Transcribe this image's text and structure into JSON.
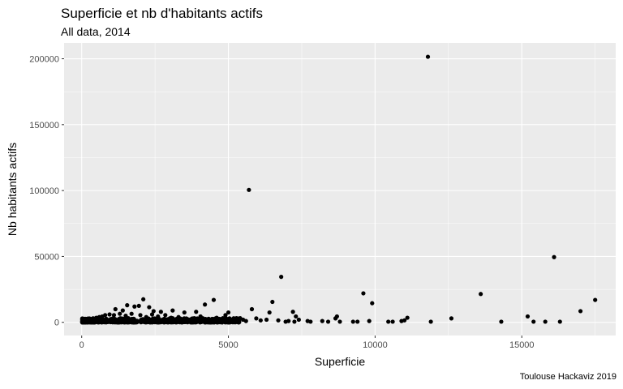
{
  "chart_data": {
    "type": "scatter",
    "title": "Superficie et nb d'habitants actifs",
    "subtitle": "All data, 2014",
    "caption": "Toulouse Hackaviz 2019",
    "xlabel": "Superficie",
    "ylabel": "Nb habitants actifs",
    "xlim": [
      -600,
      18200
    ],
    "ylim": [
      -10000,
      212000
    ],
    "xticks": [
      0,
      5000,
      10000,
      15000
    ],
    "xtick_labels": [
      "0",
      "5000",
      "10000",
      "15000"
    ],
    "yticks": [
      0,
      50000,
      100000,
      150000,
      200000
    ],
    "ytick_labels": [
      "0",
      "50000",
      "100000",
      "150000",
      "200000"
    ],
    "grid": true,
    "legend": "none",
    "colors": {
      "panel": "#ebebeb",
      "grid": "#ffffff",
      "point": "#000000"
    },
    "points": [
      [
        11800,
        201500
      ],
      [
        5700,
        100500
      ],
      [
        16100,
        49500
      ],
      [
        6800,
        34500
      ],
      [
        9600,
        22000
      ],
      [
        13600,
        21500
      ],
      [
        17500,
        17000
      ],
      [
        2100,
        17500
      ],
      [
        4500,
        17000
      ],
      [
        6500,
        15500
      ],
      [
        9900,
        14500
      ],
      [
        4200,
        13500
      ],
      [
        1550,
        13000
      ],
      [
        1800,
        12000
      ],
      [
        2300,
        11500
      ],
      [
        1950,
        12500
      ],
      [
        1150,
        10000
      ],
      [
        5800,
        10000
      ],
      [
        17000,
        8500
      ],
      [
        3100,
        9000
      ],
      [
        2700,
        8000
      ],
      [
        7200,
        8000
      ],
      [
        3900,
        8000
      ],
      [
        5000,
        7500
      ],
      [
        2450,
        8500
      ],
      [
        1400,
        9000
      ],
      [
        3500,
        7500
      ],
      [
        6400,
        7500
      ],
      [
        12600,
        3000
      ],
      [
        11100,
        3500
      ],
      [
        15200,
        4500
      ],
      [
        16300,
        500
      ],
      [
        14300,
        500
      ],
      [
        15800,
        500
      ],
      [
        15400,
        500
      ],
      [
        11900,
        500
      ],
      [
        10900,
        1000
      ],
      [
        10600,
        500
      ],
      [
        10450,
        500
      ],
      [
        11000,
        1500
      ],
      [
        9800,
        1000
      ],
      [
        9400,
        500
      ],
      [
        9250,
        500
      ],
      [
        8700,
        4500
      ],
      [
        8650,
        3000
      ],
      [
        8800,
        500
      ],
      [
        8400,
        500
      ],
      [
        8200,
        1000
      ],
      [
        7800,
        500
      ],
      [
        7700,
        1000
      ],
      [
        7250,
        500
      ],
      [
        7300,
        4500
      ],
      [
        7400,
        2000
      ],
      [
        7050,
        1000
      ],
      [
        6950,
        500
      ],
      [
        6700,
        1500
      ],
      [
        6300,
        2000
      ],
      [
        6100,
        1500
      ],
      [
        5950,
        3000
      ],
      [
        5600,
        1000
      ],
      [
        5500,
        2000
      ],
      [
        5200,
        1500
      ],
      [
        4900,
        5500
      ],
      [
        4750,
        2500
      ],
      [
        4600,
        3500
      ],
      [
        4350,
        2000
      ],
      [
        4050,
        4500
      ],
      [
        3800,
        3000
      ],
      [
        3650,
        2000
      ],
      [
        3300,
        4000
      ],
      [
        3050,
        3500
      ],
      [
        2850,
        5500
      ],
      [
        2600,
        4500
      ],
      [
        2400,
        6000
      ],
      [
        2200,
        4000
      ],
      [
        2000,
        5500
      ],
      [
        1700,
        6500
      ],
      [
        1500,
        5000
      ],
      [
        1300,
        6500
      ],
      [
        1100,
        5500
      ],
      [
        950,
        6000
      ],
      [
        800,
        5500
      ],
      [
        700,
        4500
      ],
      [
        600,
        4000
      ],
      [
        500,
        3500
      ],
      [
        400,
        2500
      ],
      [
        300,
        2000
      ],
      [
        200,
        1000
      ],
      [
        100,
        500
      ]
    ],
    "dense_cluster": {
      "x_range": [
        20,
        5400
      ],
      "y_range": [
        0,
        3200
      ],
      "count": 700
    }
  }
}
